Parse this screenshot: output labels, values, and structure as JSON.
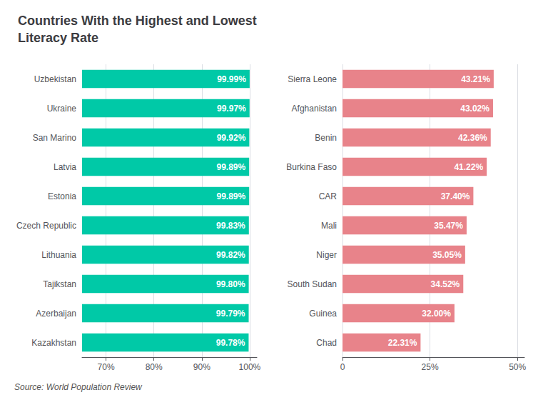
{
  "chart_data": [
    {
      "type": "bar",
      "orientation": "horizontal",
      "title": "Countries With the Highest and Lowest\nLiteracy Rate",
      "annotations": [
        "Source: World Population Review"
      ],
      "categories": [
        "Uzbekistan",
        "Ukraine",
        "San Marino",
        "Latvia",
        "Estonia",
        "Czech Republic",
        "Lithuania",
        "Tajikstan",
        "Azerbaijan",
        "Kazakhstan"
      ],
      "values": [
        99.99,
        99.97,
        99.92,
        99.89,
        99.89,
        99.83,
        99.82,
        99.8,
        99.79,
        99.78
      ],
      "value_labels": [
        "99.99%",
        "99.97%",
        "99.92%",
        "99.89%",
        "99.89%",
        "99.83%",
        "99.82%",
        "99.80%",
        "99.79%",
        "99.78%"
      ],
      "color": "#00C9A7",
      "xlim": [
        65,
        101.5
      ],
      "xticks": [
        {
          "value": 70,
          "label": "70%"
        },
        {
          "value": 80,
          "label": "80%"
        },
        {
          "value": 90,
          "label": "90%"
        },
        {
          "value": 100,
          "label": "100%"
        }
      ],
      "grid": true,
      "data_labels": true
    },
    {
      "type": "bar",
      "orientation": "horizontal",
      "categories": [
        "Sierra Leone",
        "Afghanistan",
        "Benin",
        "Burkina Faso",
        "CAR",
        "Mali",
        "Niger",
        "South Sudan",
        "Guinea",
        "Chad"
      ],
      "values": [
        43.21,
        43.02,
        42.36,
        41.22,
        37.4,
        35.47,
        35.05,
        34.52,
        32.0,
        22.31
      ],
      "value_labels": [
        "43.21%",
        "43.02%",
        "42.36%",
        "41.22%",
        "37.40%",
        "35.47%",
        "35.05%",
        "34.52%",
        "32.00%",
        "22.31%"
      ],
      "color": "#E8838A",
      "xlim": [
        0,
        52
      ],
      "xticks": [
        0,
        {
          "value": 25,
          "label": "25%"
        },
        {
          "value": 50,
          "label": "50%"
        }
      ],
      "grid": true,
      "data_labels": true
    }
  ]
}
